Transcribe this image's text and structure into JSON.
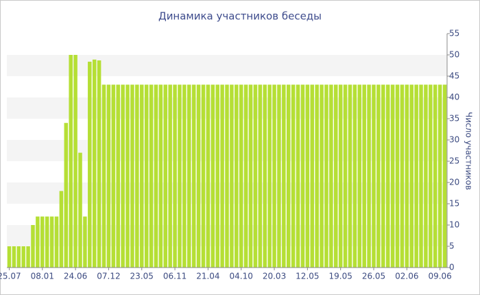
{
  "chart_data": {
    "type": "bar",
    "title": "Динамика участников беседы",
    "y_axis_label": "Число участников",
    "color": "#b5df35",
    "ylim": [
      0,
      55
    ],
    "yticks": [
      0,
      5,
      10,
      15,
      20,
      25,
      30,
      35,
      40,
      45,
      50,
      55
    ],
    "grid": true,
    "categories": [
      "25.07",
      null,
      null,
      null,
      null,
      null,
      null,
      "08.01",
      null,
      null,
      null,
      null,
      null,
      null,
      "24.06",
      null,
      null,
      null,
      null,
      null,
      null,
      "07.12",
      null,
      null,
      null,
      null,
      null,
      null,
      "23.05",
      null,
      null,
      null,
      null,
      null,
      null,
      "06.11",
      null,
      null,
      null,
      null,
      null,
      null,
      "21.04",
      null,
      null,
      null,
      null,
      null,
      null,
      "04.10",
      null,
      null,
      null,
      null,
      null,
      null,
      "20.03",
      null,
      null,
      null,
      null,
      null,
      null,
      "12.05",
      null,
      null,
      null,
      null,
      null,
      null,
      "19.05",
      null,
      null,
      null,
      null,
      null,
      null,
      "26.05",
      null,
      null,
      null,
      null,
      null,
      null,
      "02.06",
      null,
      null,
      null,
      null,
      null,
      null,
      "09.06",
      null
    ],
    "values": [
      5,
      5,
      5,
      5,
      5,
      10,
      12,
      12,
      12,
      12,
      12,
      18,
      34,
      50,
      50,
      27,
      12,
      48.4,
      48.9,
      48.7,
      43,
      43,
      43,
      43,
      43,
      43,
      43,
      43,
      43,
      43,
      43,
      43,
      43,
      43,
      43,
      43,
      43,
      43,
      43,
      43,
      43,
      43,
      43,
      43,
      43,
      43,
      43,
      43,
      43,
      43,
      43,
      43,
      43,
      43,
      43,
      43,
      43,
      43,
      43,
      43,
      43,
      43,
      43,
      43,
      43,
      43,
      43,
      43,
      43,
      43,
      43,
      43,
      43,
      43,
      43,
      43,
      43,
      43,
      43,
      43,
      43,
      43,
      43,
      43,
      43,
      43,
      43,
      43,
      43,
      43,
      43,
      43,
      43
    ]
  }
}
